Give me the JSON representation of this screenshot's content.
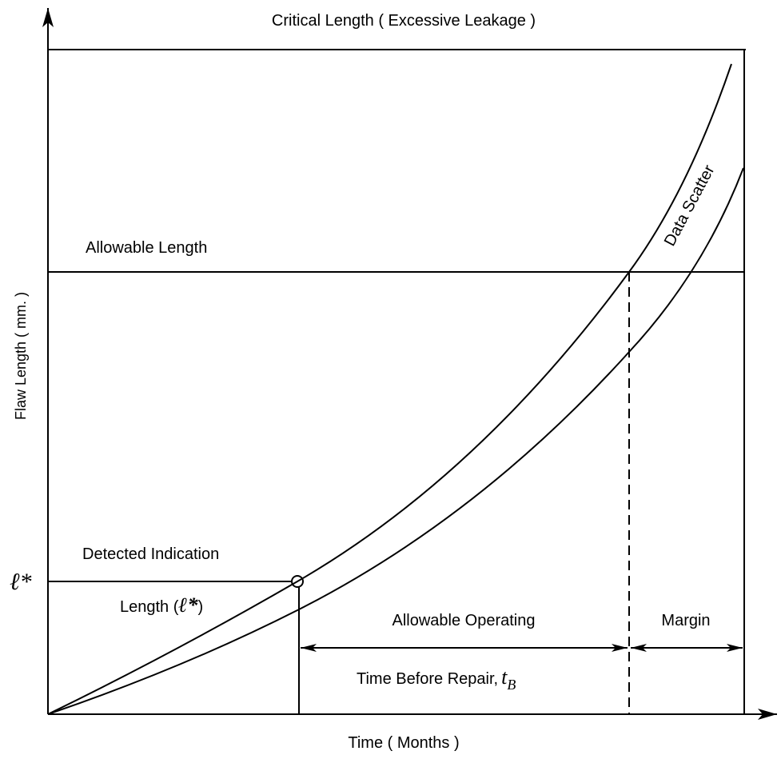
{
  "header": {
    "title": "Critical Length ( Excessive Leakage )"
  },
  "axes": {
    "y_label": "Flaw Length ( mm. )",
    "x_label": "Time ( Months )",
    "y_marker": "ℓ*"
  },
  "labels": {
    "allowable_length": "Allowable Length",
    "data_scatter": "Data Scatter",
    "detected_indication": "Detected Indication",
    "length": {
      "text": "Length (",
      "symbol": "ℓ*",
      "close": ")"
    },
    "allowable_operating": "Allowable Operating",
    "time_before_repair": {
      "text": "Time Before Repair,",
      "symbol": "t",
      "subscript": "B"
    },
    "margin": "Margin"
  }
}
